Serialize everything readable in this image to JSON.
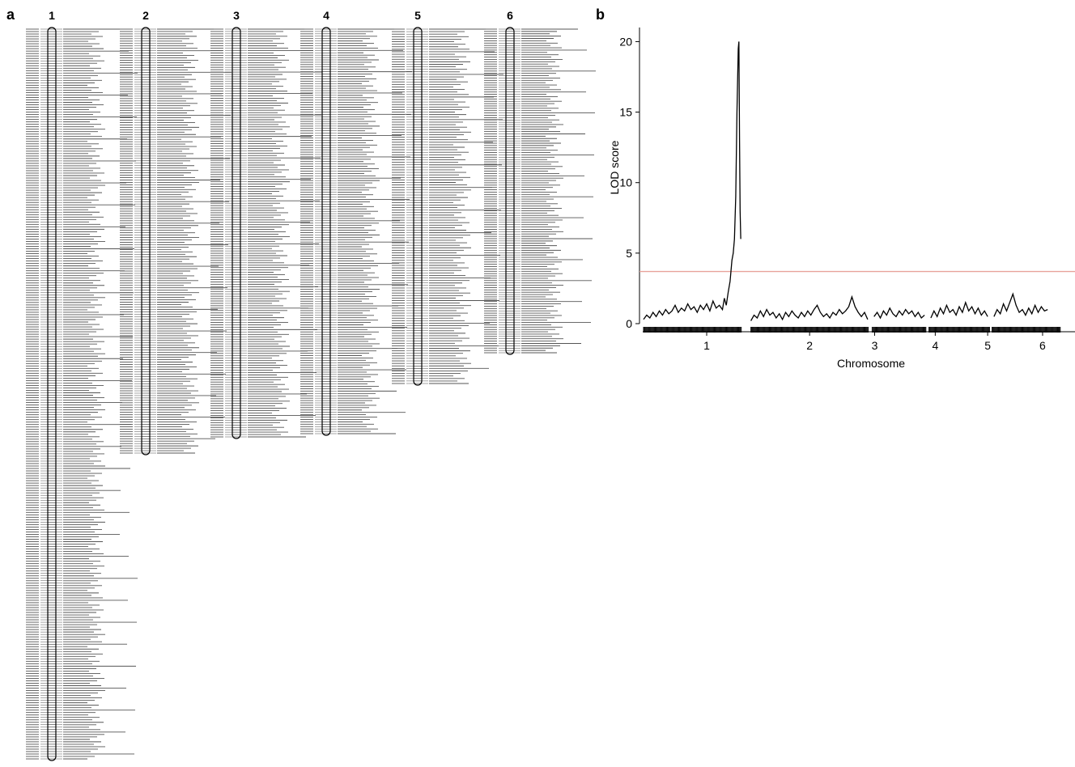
{
  "panels": {
    "a": {
      "label": "a"
    },
    "b": {
      "label": "b"
    }
  },
  "linkage_map": {
    "chromosomes": [
      {
        "name": "1",
        "marker_count": 300
      },
      {
        "name": "2",
        "marker_count": 178
      },
      {
        "name": "3",
        "marker_count": 172
      },
      {
        "name": "4",
        "marker_count": 172
      },
      {
        "name": "5",
        "marker_count": 142
      },
      {
        "name": "6",
        "marker_count": 140
      }
    ]
  },
  "chart_data": {
    "type": "line",
    "xlabel": "Chromosome",
    "ylabel": "LOD score",
    "ylim": [
      0,
      21
    ],
    "yticks": [
      0,
      5,
      10,
      15,
      20
    ],
    "chromosomes": [
      "1",
      "2",
      "3",
      "4",
      "5",
      "6"
    ],
    "threshold": {
      "value": 3.7,
      "color": "#e8a29a"
    },
    "series": [
      {
        "color": "#000000",
        "points": [
          [
            0.0,
            0.3
          ],
          [
            0.05,
            0.6
          ],
          [
            0.1,
            0.4
          ],
          [
            0.15,
            0.8
          ],
          [
            0.2,
            0.5
          ],
          [
            0.25,
            0.9
          ],
          [
            0.3,
            0.6
          ],
          [
            0.35,
            1.0
          ],
          [
            0.4,
            0.7
          ],
          [
            0.45,
            0.9
          ],
          [
            0.5,
            1.3
          ],
          [
            0.55,
            0.8
          ],
          [
            0.6,
            1.1
          ],
          [
            0.65,
            0.9
          ],
          [
            0.7,
            1.4
          ],
          [
            0.75,
            1.0
          ],
          [
            0.8,
            1.2
          ],
          [
            0.85,
            0.8
          ],
          [
            0.9,
            1.3
          ],
          [
            0.95,
            1.0
          ],
          [
            1.0,
            1.4
          ],
          [
            1.05,
            0.9
          ],
          [
            1.1,
            1.6
          ],
          [
            1.15,
            1.1
          ],
          [
            1.2,
            1.3
          ],
          [
            1.25,
            1.0
          ],
          [
            1.28,
            1.8
          ],
          [
            1.31,
            1.3
          ],
          [
            1.34,
            2.2
          ],
          [
            1.37,
            3.0
          ],
          [
            1.4,
            4.5
          ],
          [
            1.42,
            5.0
          ],
          [
            1.44,
            6.0
          ],
          [
            1.46,
            9.0
          ],
          [
            1.48,
            15.0
          ],
          [
            1.5,
            19.5
          ],
          [
            1.51,
            20.0
          ],
          [
            1.52,
            13.0
          ],
          [
            1.53,
            8.0
          ],
          [
            1.54,
            6.0
          ],
          [
            1.7,
            0.2
          ],
          [
            1.75,
            0.6
          ],
          [
            1.8,
            0.4
          ],
          [
            1.85,
            0.9
          ],
          [
            1.9,
            0.5
          ],
          [
            1.95,
            1.0
          ],
          [
            2.0,
            0.6
          ],
          [
            2.05,
            0.8
          ],
          [
            2.1,
            0.4
          ],
          [
            2.15,
            0.7
          ],
          [
            2.2,
            0.3
          ],
          [
            2.25,
            0.8
          ],
          [
            2.3,
            0.5
          ],
          [
            2.35,
            0.9
          ],
          [
            2.4,
            0.6
          ],
          [
            2.45,
            0.4
          ],
          [
            2.5,
            0.8
          ],
          [
            2.55,
            0.5
          ],
          [
            2.6,
            0.9
          ],
          [
            2.65,
            0.6
          ],
          [
            2.7,
            1.0
          ],
          [
            2.75,
            1.3
          ],
          [
            2.8,
            0.8
          ],
          [
            2.85,
            0.5
          ],
          [
            2.9,
            0.7
          ],
          [
            2.95,
            0.4
          ],
          [
            3.0,
            0.8
          ],
          [
            3.05,
            0.6
          ],
          [
            3.1,
            1.0
          ],
          [
            3.15,
            0.7
          ],
          [
            3.2,
            0.9
          ],
          [
            3.25,
            1.2
          ],
          [
            3.3,
            1.9
          ],
          [
            3.35,
            1.2
          ],
          [
            3.4,
            0.8
          ],
          [
            3.45,
            0.5
          ],
          [
            3.5,
            0.8
          ],
          [
            3.55,
            0.3
          ],
          [
            3.65,
            0.5
          ],
          [
            3.7,
            0.8
          ],
          [
            3.75,
            0.4
          ],
          [
            3.8,
            0.9
          ],
          [
            3.85,
            0.6
          ],
          [
            3.9,
            1.1
          ],
          [
            3.95,
            0.7
          ],
          [
            4.0,
            0.5
          ],
          [
            4.05,
            0.9
          ],
          [
            4.1,
            0.6
          ],
          [
            4.15,
            1.0
          ],
          [
            4.2,
            0.7
          ],
          [
            4.25,
            0.9
          ],
          [
            4.3,
            0.5
          ],
          [
            4.35,
            0.8
          ],
          [
            4.4,
            0.4
          ],
          [
            4.45,
            0.6
          ],
          [
            4.55,
            0.4
          ],
          [
            4.6,
            0.9
          ],
          [
            4.65,
            0.5
          ],
          [
            4.7,
            1.1
          ],
          [
            4.75,
            0.7
          ],
          [
            4.8,
            1.3
          ],
          [
            4.85,
            0.8
          ],
          [
            4.9,
            1.0
          ],
          [
            4.95,
            0.6
          ],
          [
            5.0,
            1.2
          ],
          [
            5.05,
            0.8
          ],
          [
            5.1,
            1.5
          ],
          [
            5.15,
            0.9
          ],
          [
            5.2,
            1.2
          ],
          [
            5.25,
            0.7
          ],
          [
            5.3,
            1.1
          ],
          [
            5.35,
            0.6
          ],
          [
            5.4,
            0.9
          ],
          [
            5.45,
            0.5
          ],
          [
            5.55,
            0.5
          ],
          [
            5.6,
            1.0
          ],
          [
            5.65,
            0.7
          ],
          [
            5.7,
            1.4
          ],
          [
            5.75,
            0.9
          ],
          [
            5.8,
            1.5
          ],
          [
            5.85,
            2.1
          ],
          [
            5.9,
            1.3
          ],
          [
            5.95,
            0.8
          ],
          [
            6.0,
            1.0
          ],
          [
            6.05,
            0.6
          ],
          [
            6.1,
            1.1
          ],
          [
            6.15,
            0.7
          ],
          [
            6.2,
            1.3
          ],
          [
            6.25,
            0.8
          ],
          [
            6.3,
            1.2
          ],
          [
            6.35,
            0.9
          ],
          [
            6.4,
            1.0
          ]
        ]
      }
    ]
  }
}
